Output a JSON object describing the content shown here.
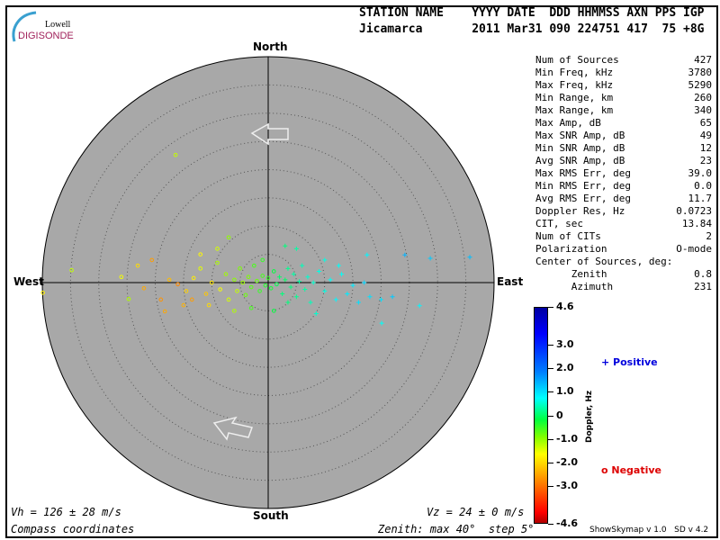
{
  "logo": {
    "line1": "Lowell",
    "line2": "DIGISONDE"
  },
  "header": {
    "labels": "STATION NAME    YYYY DATE  DDD HHMMSS AXN PPS IGP",
    "values": "Jicamarca       2011 Mar31 090 224751 417  75 +8G"
  },
  "directions": {
    "north": "North",
    "south": "South",
    "east": "East",
    "west": "West"
  },
  "stats": [
    {
      "label": "Num of Sources",
      "value": "427"
    },
    {
      "label": "Min Freq, kHz",
      "value": "3780"
    },
    {
      "label": "Max Freq, kHz",
      "value": "5290"
    },
    {
      "label": "Min Range, km",
      "value": "260"
    },
    {
      "label": "Max Range, km",
      "value": "340"
    },
    {
      "label": "Max Amp, dB",
      "value": "65"
    },
    {
      "label": "Max SNR Amp, dB",
      "value": "49"
    },
    {
      "label": "Min SNR Amp, dB",
      "value": "12"
    },
    {
      "label": "Avg SNR Amp, dB",
      "value": "23"
    },
    {
      "label": "Max RMS Err, deg",
      "value": "39.0"
    },
    {
      "label": "Min RMS Err, deg",
      "value": "0.0"
    },
    {
      "label": "Avg RMS Err, deg",
      "value": "11.7"
    },
    {
      "label": "Doppler Res, Hz",
      "value": "0.0723"
    },
    {
      "label": "CIT, sec",
      "value": "13.84"
    },
    {
      "label": "Num of CITs",
      "value": "2"
    },
    {
      "label": "Polarization",
      "value": "O-mode"
    },
    {
      "label": "Center of Sources, deg:",
      "value": ""
    },
    {
      "label": "      Zenith",
      "value": "0.8"
    },
    {
      "label": "      Azimuth",
      "value": "231"
    }
  ],
  "footer": {
    "vh": "Vh = 126 ± 28 m/s",
    "vz": "Vz = 24 ± 0 m/s",
    "coords": "Compass coordinates",
    "zenith": "Zenith: max 40°  step 5°",
    "version": "ShowSkymap v 1.0   SD v 4.2"
  },
  "legend": {
    "positive": "+ Positive",
    "negative": "o Negative",
    "positive_color": "#0000dd",
    "negative_color": "#dd0000"
  },
  "colorbar": {
    "label": "Doppler, Hz",
    "ticks": [
      "4.6",
      "3.0",
      "2.0",
      "1.0",
      "0",
      "-1.0",
      "-2.0",
      "-3.0",
      "-4.6"
    ],
    "range": [
      -4.6,
      4.6
    ]
  },
  "chart_data": {
    "type": "scatter",
    "projection": "polar skymap, compass coordinates",
    "zenith_max_deg": 40,
    "zenith_step_deg": 5,
    "background": "#a8a8a8",
    "point_fields": [
      "east_deg",
      "north_deg",
      "doppler_hz"
    ],
    "points": [
      [
        -16.4,
        22.6,
        -1.3
      ],
      [
        35.7,
        4.5,
        1.3
      ],
      [
        28.7,
        4.3,
        1.2
      ],
      [
        24.2,
        4.9,
        1.4
      ],
      [
        17.5,
        4.9,
        0.8
      ],
      [
        26.8,
        -4.1,
        0.8
      ],
      [
        20.1,
        -7.2,
        0.7
      ],
      [
        -39.9,
        -1.8,
        -1.8
      ],
      [
        -34.8,
        2.2,
        -1.3
      ],
      [
        -23.1,
        3.0,
        -2.0
      ],
      [
        -24.7,
        -2.9,
        -1.2
      ],
      [
        -18.3,
        -5.1,
        -2.5
      ],
      [
        -20.6,
        4.0,
        -2.6
      ],
      [
        -17.5,
        0.5,
        -2.3
      ],
      [
        -16.0,
        -0.3,
        -2.8
      ],
      [
        -14.5,
        -1.5,
        -2.1
      ],
      [
        -13.2,
        0.8,
        -1.8
      ],
      [
        -12.0,
        2.5,
        -1.5
      ],
      [
        -11.0,
        -2.0,
        -2.2
      ],
      [
        -10.0,
        0.0,
        -1.9
      ],
      [
        -9.0,
        3.5,
        -1.2
      ],
      [
        -8.5,
        -1.2,
        -1.6
      ],
      [
        -7.5,
        1.5,
        -1.1
      ],
      [
        -7.0,
        -3.0,
        -1.4
      ],
      [
        -6.0,
        0.5,
        -1.0
      ],
      [
        -5.5,
        -1.5,
        -1.3
      ],
      [
        -5.0,
        2.5,
        -0.9
      ],
      [
        -4.5,
        0.0,
        -1.1
      ],
      [
        -4.0,
        -2.2,
        -0.8
      ],
      [
        -3.5,
        1.0,
        -0.9
      ],
      [
        -3.0,
        -0.8,
        -0.7
      ],
      [
        -2.5,
        3.0,
        -0.6
      ],
      [
        -2.0,
        0.3,
        -0.8
      ],
      [
        -1.5,
        -1.5,
        -0.5
      ],
      [
        -1.0,
        1.2,
        -0.6
      ],
      [
        -0.5,
        -0.5,
        -0.4
      ],
      [
        0.0,
        0.8,
        -0.5
      ],
      [
        0.5,
        -1.0,
        -0.3
      ],
      [
        1.0,
        2.0,
        -0.2
      ],
      [
        1.5,
        -0.3,
        -0.1
      ],
      [
        2.0,
        1.0,
        0.0
      ],
      [
        2.5,
        -2.0,
        0.1
      ],
      [
        3.0,
        0.5,
        0.0
      ],
      [
        3.5,
        2.5,
        0.2
      ],
      [
        4.0,
        -0.8,
        0.1
      ],
      [
        4.5,
        1.5,
        0.3
      ],
      [
        5.0,
        -2.5,
        0.2
      ],
      [
        5.5,
        0.2,
        0.3
      ],
      [
        6.0,
        3.0,
        0.4
      ],
      [
        6.5,
        -1.2,
        0.3
      ],
      [
        7.0,
        1.0,
        0.5
      ],
      [
        7.5,
        -3.5,
        0.4
      ],
      [
        8.0,
        0.0,
        0.5
      ],
      [
        9.0,
        2.0,
        0.6
      ],
      [
        10.0,
        -1.5,
        0.6
      ],
      [
        11.0,
        0.5,
        0.7
      ],
      [
        12.0,
        -3.0,
        0.8
      ],
      [
        13.0,
        1.5,
        0.7
      ],
      [
        14.0,
        -2.0,
        0.9
      ],
      [
        15.0,
        -0.5,
        0.9
      ],
      [
        16.0,
        -3.5,
        1.0
      ],
      [
        17.0,
        0.0,
        1.1
      ],
      [
        18.0,
        -2.5,
        1.0
      ],
      [
        5.0,
        6.0,
        0.3
      ],
      [
        3.0,
        6.5,
        0.1
      ],
      [
        -7.0,
        8.0,
        -1.0
      ],
      [
        -9.0,
        6.0,
        -1.4
      ],
      [
        -12.0,
        5.0,
        -1.7
      ],
      [
        -15.0,
        -4.0,
        -2.4
      ],
      [
        -19.0,
        -3.0,
        -2.7
      ],
      [
        -22.0,
        -1.0,
        -2.5
      ],
      [
        -26.0,
        1.0,
        -1.6
      ],
      [
        10.0,
        4.0,
        0.6
      ],
      [
        12.5,
        3.0,
        0.7
      ],
      [
        20.0,
        -3.0,
        1.0
      ],
      [
        22.0,
        -2.5,
        1.2
      ],
      [
        -3.0,
        -4.5,
        -0.6
      ],
      [
        1.0,
        -5.0,
        -0.2
      ],
      [
        -6.0,
        -5.0,
        -1.2
      ],
      [
        8.5,
        -5.5,
        0.5
      ],
      [
        -1.0,
        4.0,
        -0.5
      ],
      [
        3.5,
        -3.5,
        0.1
      ],
      [
        -10.5,
        -4.0,
        -2.0
      ],
      [
        -13.5,
        -3.0,
        -2.6
      ]
    ]
  }
}
